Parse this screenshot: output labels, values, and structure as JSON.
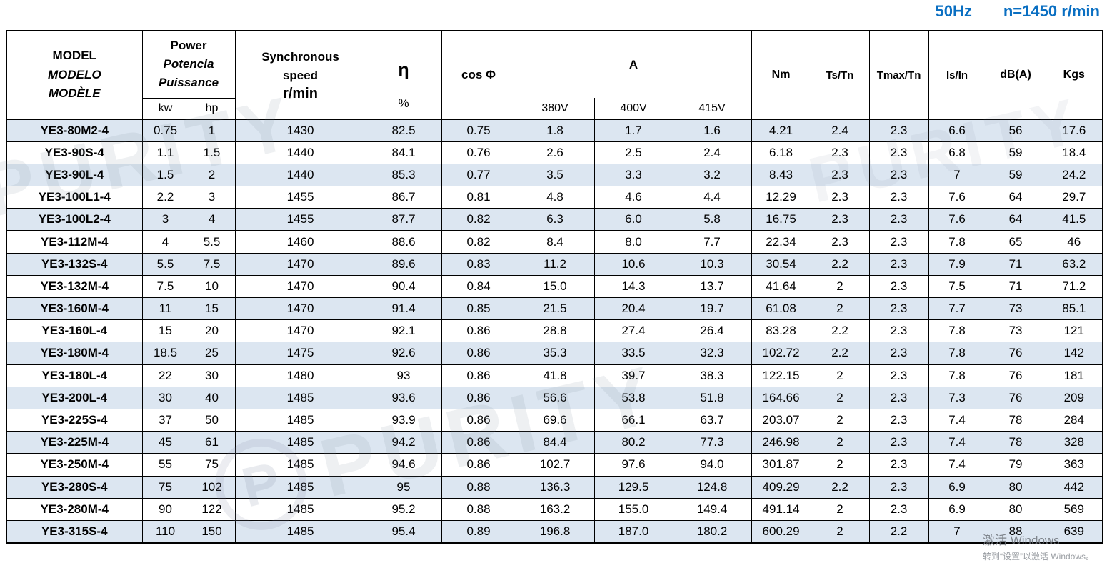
{
  "page": {
    "frequency_label": "50Hz",
    "speed_label": "n=1450 r/min"
  },
  "table": {
    "header": {
      "model_lines": [
        "MODEL",
        "MODELO",
        "MODÈLE"
      ],
      "power_lines": [
        "Power",
        "Potencia",
        "Puissance"
      ],
      "power_sub": [
        "kw",
        "hp"
      ],
      "sync_speed_title": "Synchronous speed",
      "sync_speed_unit": "r/min",
      "eta_symbol": "η",
      "eta_unit": "%",
      "cos_phi": "cos Φ",
      "current_title": "A",
      "current_sub": [
        "380V",
        "400V",
        "415V"
      ],
      "nm": "Nm",
      "ts_tn": "Ts/Tn",
      "tmax_tn": "Tmax/Tn",
      "is_in": "Is/In",
      "db": "dB(A)",
      "kgs": "Kgs"
    },
    "columns": [
      "model",
      "kw",
      "hp",
      "sync-speed",
      "eta",
      "cos-phi",
      "a-380v",
      "a-400v",
      "a-415v",
      "nm",
      "ts-tn",
      "tmax-tn",
      "is-in",
      "db-a",
      "kgs"
    ],
    "rows": [
      [
        "YE3-80M2-4",
        "0.75",
        "1",
        "1430",
        "82.5",
        "0.75",
        "1.8",
        "1.7",
        "1.6",
        "4.21",
        "2.4",
        "2.3",
        "6.6",
        "56",
        "17.6"
      ],
      [
        "YE3-90S-4",
        "1.1",
        "1.5",
        "1440",
        "84.1",
        "0.76",
        "2.6",
        "2.5",
        "2.4",
        "6.18",
        "2.3",
        "2.3",
        "6.8",
        "59",
        "18.4"
      ],
      [
        "YE3-90L-4",
        "1.5",
        "2",
        "1440",
        "85.3",
        "0.77",
        "3.5",
        "3.3",
        "3.2",
        "8.43",
        "2.3",
        "2.3",
        "7",
        "59",
        "24.2"
      ],
      [
        "YE3-100L1-4",
        "2.2",
        "3",
        "1455",
        "86.7",
        "0.81",
        "4.8",
        "4.6",
        "4.4",
        "12.29",
        "2.3",
        "2.3",
        "7.6",
        "64",
        "29.7"
      ],
      [
        "YE3-100L2-4",
        "3",
        "4",
        "1455",
        "87.7",
        "0.82",
        "6.3",
        "6.0",
        "5.8",
        "16.75",
        "2.3",
        "2.3",
        "7.6",
        "64",
        "41.5"
      ],
      [
        "YE3-112M-4",
        "4",
        "5.5",
        "1460",
        "88.6",
        "0.82",
        "8.4",
        "8.0",
        "7.7",
        "22.34",
        "2.3",
        "2.3",
        "7.8",
        "65",
        "46"
      ],
      [
        "YE3-132S-4",
        "5.5",
        "7.5",
        "1470",
        "89.6",
        "0.83",
        "11.2",
        "10.6",
        "10.3",
        "30.54",
        "2.2",
        "2.3",
        "7.9",
        "71",
        "63.2"
      ],
      [
        "YE3-132M-4",
        "7.5",
        "10",
        "1470",
        "90.4",
        "0.84",
        "15.0",
        "14.3",
        "13.7",
        "41.64",
        "2",
        "2.3",
        "7.5",
        "71",
        "71.2"
      ],
      [
        "YE3-160M-4",
        "11",
        "15",
        "1470",
        "91.4",
        "0.85",
        "21.5",
        "20.4",
        "19.7",
        "61.08",
        "2",
        "2.3",
        "7.7",
        "73",
        "85.1"
      ],
      [
        "YE3-160L-4",
        "15",
        "20",
        "1470",
        "92.1",
        "0.86",
        "28.8",
        "27.4",
        "26.4",
        "83.28",
        "2.2",
        "2.3",
        "7.8",
        "73",
        "121"
      ],
      [
        "YE3-180M-4",
        "18.5",
        "25",
        "1475",
        "92.6",
        "0.86",
        "35.3",
        "33.5",
        "32.3",
        "102.72",
        "2.2",
        "2.3",
        "7.8",
        "76",
        "142"
      ],
      [
        "YE3-180L-4",
        "22",
        "30",
        "1480",
        "93",
        "0.86",
        "41.8",
        "39.7",
        "38.3",
        "122.15",
        "2",
        "2.3",
        "7.8",
        "76",
        "181"
      ],
      [
        "YE3-200L-4",
        "30",
        "40",
        "1485",
        "93.6",
        "0.86",
        "56.6",
        "53.8",
        "51.8",
        "164.66",
        "2",
        "2.3",
        "7.3",
        "76",
        "209"
      ],
      [
        "YE3-225S-4",
        "37",
        "50",
        "1485",
        "93.9",
        "0.86",
        "69.6",
        "66.1",
        "63.7",
        "203.07",
        "2",
        "2.3",
        "7.4",
        "78",
        "284"
      ],
      [
        "YE3-225M-4",
        "45",
        "61",
        "1485",
        "94.2",
        "0.86",
        "84.4",
        "80.2",
        "77.3",
        "246.98",
        "2",
        "2.3",
        "7.4",
        "78",
        "328"
      ],
      [
        "YE3-250M-4",
        "55",
        "75",
        "1485",
        "94.6",
        "0.86",
        "102.7",
        "97.6",
        "94.0",
        "301.87",
        "2",
        "2.3",
        "7.4",
        "79",
        "363"
      ],
      [
        "YE3-280S-4",
        "75",
        "102",
        "1485",
        "95",
        "0.88",
        "136.3",
        "129.5",
        "124.8",
        "409.29",
        "2.2",
        "2.3",
        "6.9",
        "80",
        "442"
      ],
      [
        "YE3-280M-4",
        "90",
        "122",
        "1485",
        "95.2",
        "0.88",
        "163.2",
        "155.0",
        "149.4",
        "491.14",
        "2",
        "2.3",
        "6.9",
        "80",
        "569"
      ],
      [
        "YE3-315S-4",
        "110",
        "150",
        "1485",
        "95.4",
        "0.89",
        "196.8",
        "187.0",
        "180.2",
        "600.29",
        "2",
        "2.2",
        "7",
        "88",
        "639"
      ]
    ]
  },
  "watermarks": {
    "brand": "PURITY",
    "logo_letter": "P",
    "activate_line1": "激活 Windows",
    "activate_line2": "转到“设置”以激活 Windows。"
  },
  "colors": {
    "header_text_blue": "#0a6fc2",
    "row_shade": "#dce6f1",
    "border": "#000000"
  }
}
